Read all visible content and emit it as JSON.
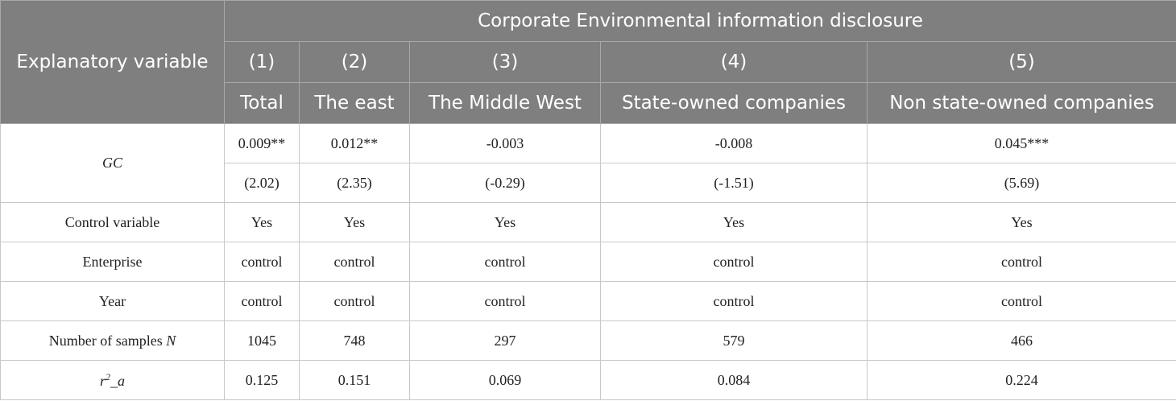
{
  "header": {
    "row_label": "Explanatory variable",
    "group": "Corporate Environmental information disclosure",
    "columns": [
      {
        "number": "(1)",
        "name": "Total"
      },
      {
        "number": "(2)",
        "name": "The east"
      },
      {
        "number": "(3)",
        "name": "The Middle West"
      },
      {
        "number": "(4)",
        "name": "State-owned companies"
      },
      {
        "number": "(5)",
        "name": "Non state-owned companies"
      }
    ]
  },
  "table": {
    "gc": {
      "label": "GC",
      "coefficients": [
        "0.009**",
        "0.012**",
        "-0.003",
        "-0.008",
        "0.045***"
      ],
      "t_values": [
        "(2.02)",
        "(2.35)",
        "(-0.29)",
        "(-1.51)",
        "(5.69)"
      ]
    },
    "rows": [
      {
        "label": [
          {
            "text": "Control variable"
          }
        ],
        "cells": [
          "Yes",
          "Yes",
          "Yes",
          "Yes",
          "Yes"
        ]
      },
      {
        "label": [
          {
            "text": "Enterprise"
          }
        ],
        "cells": [
          "control",
          "control",
          "control",
          "control",
          "control"
        ]
      },
      {
        "label": [
          {
            "text": "Year"
          }
        ],
        "cells": [
          "control",
          "control",
          "control",
          "control",
          "control"
        ]
      },
      {
        "label": [
          {
            "text": "Number of samples "
          },
          {
            "text": "N",
            "italic": true
          }
        ],
        "cells": [
          1045,
          748,
          297,
          579,
          466
        ]
      },
      {
        "label": [
          {
            "text": "r",
            "italic": true
          },
          {
            "text": "2",
            "italic": true,
            "sup": true
          },
          {
            "text": "_a",
            "italic": true
          }
        ],
        "cells": [
          0.125,
          0.151,
          0.069,
          0.084,
          0.224
        ]
      }
    ]
  }
}
